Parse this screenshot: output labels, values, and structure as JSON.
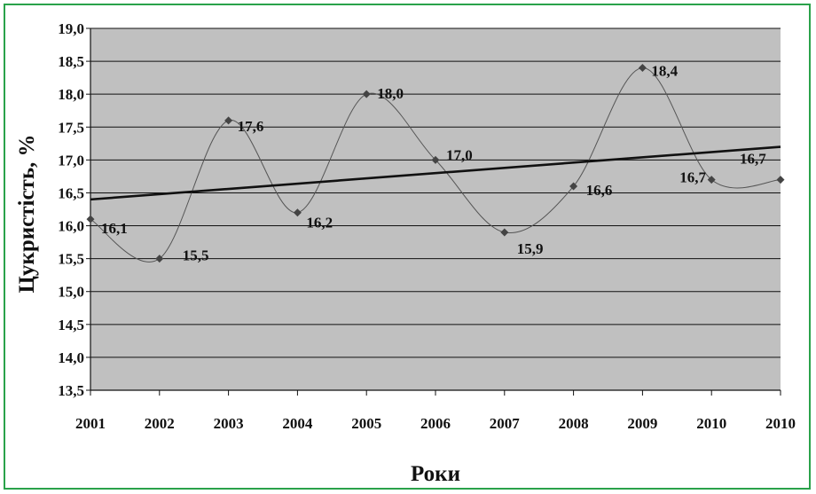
{
  "chart_data": {
    "type": "line",
    "categories": [
      "2001",
      "2002",
      "2003",
      "2004",
      "2005",
      "2006",
      "2007",
      "2008",
      "2009",
      "2010",
      "2010"
    ],
    "series": [
      {
        "values": [
          16.1,
          15.5,
          17.6,
          16.2,
          18.0,
          17.0,
          15.9,
          16.6,
          18.4,
          16.7,
          16.7
        ],
        "labels": [
          "16,1",
          "15,5",
          "17,6",
          "16,2",
          "18,0",
          "17,0",
          "15,9",
          "16,6",
          "18,4",
          "16,7",
          "16,7"
        ],
        "color": "#555555",
        "marker": "diamond",
        "smooth": true
      }
    ],
    "trendline": {
      "type": "linear",
      "start": 16.4,
      "end": 17.2,
      "color": "#111111"
    },
    "xlabel": "Роки",
    "ylabel": "Цукристість, %",
    "ylim": [
      13.5,
      19.0
    ],
    "yticks": [
      13.5,
      14.0,
      14.5,
      15.0,
      15.5,
      16.0,
      16.5,
      17.0,
      17.5,
      18.0,
      18.5,
      19.0
    ],
    "ytick_labels": [
      "13,5",
      "14,0",
      "14,5",
      "15,0",
      "15,5",
      "16,0",
      "16,5",
      "17,0",
      "17,5",
      "18,0",
      "18,5",
      "19,0"
    ],
    "grid": true,
    "legend": "none",
    "plot_background": "#c0c0c0",
    "frame_color": "#2aa24a"
  }
}
